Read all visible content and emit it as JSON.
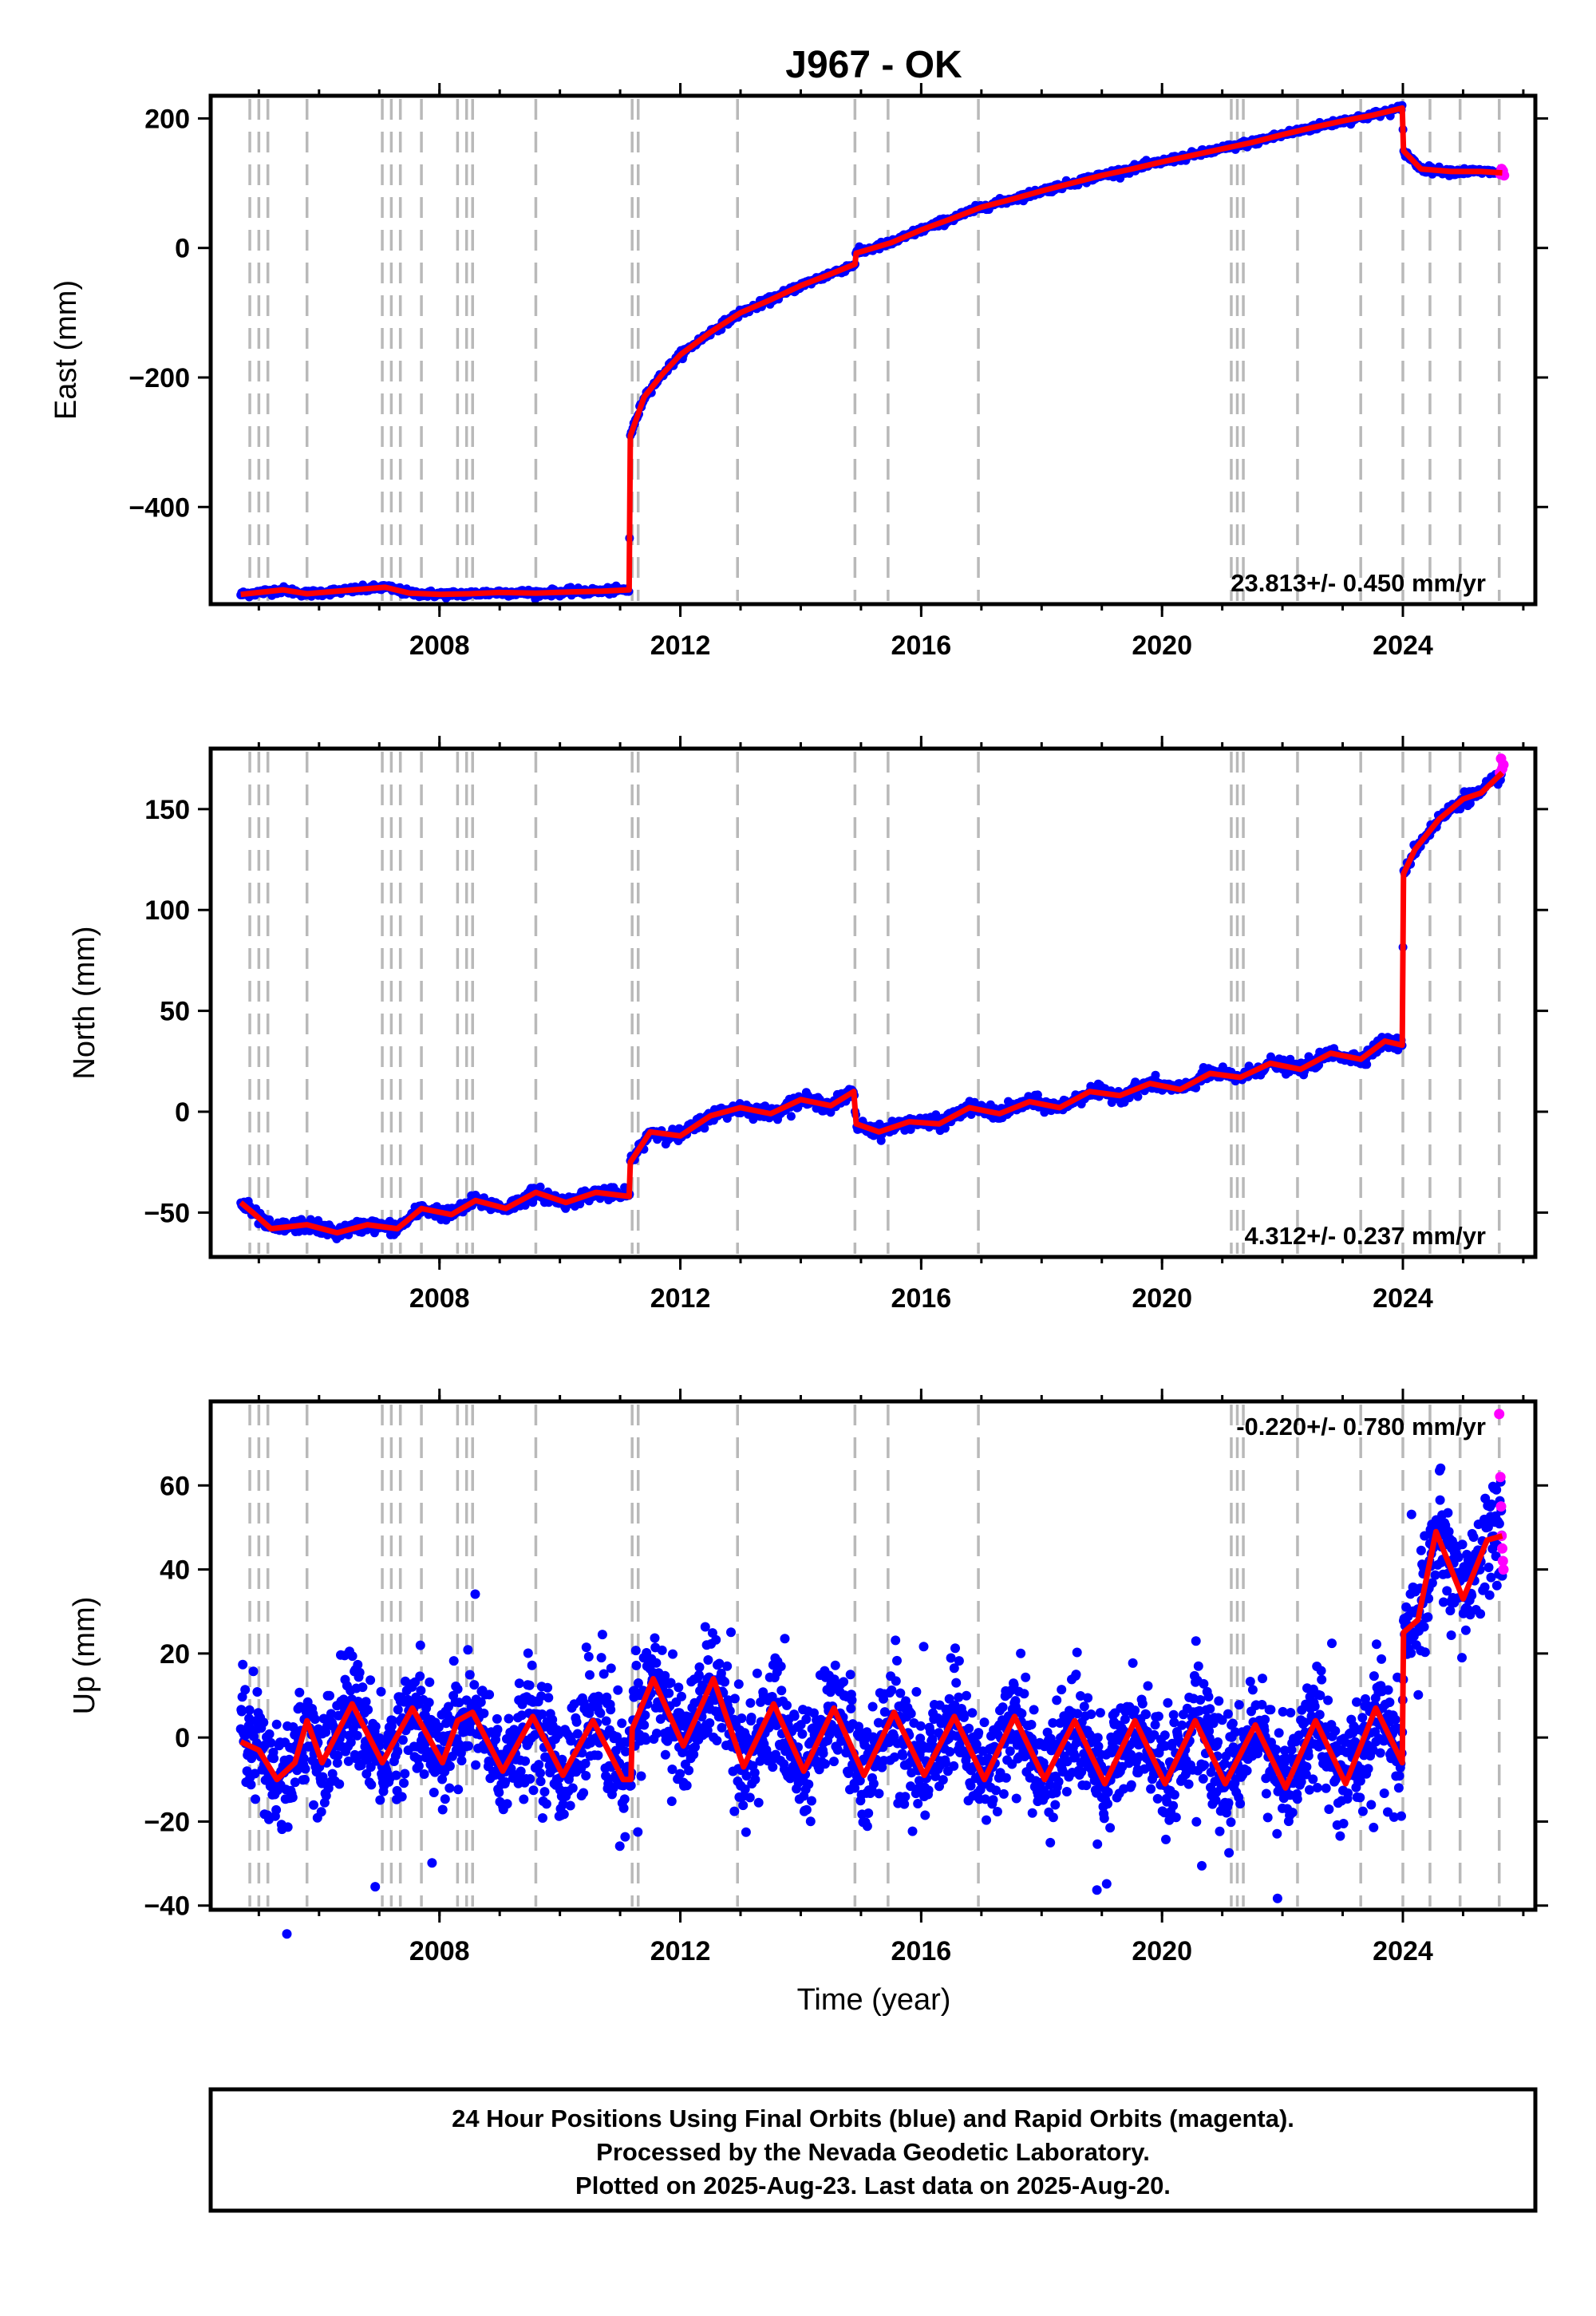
{
  "figure": {
    "title": "J967 - OK",
    "xlabel": "Time (year)",
    "colors": {
      "final": "#0000ff",
      "rapid": "#ff00ff",
      "fit": "#ff0000",
      "events": "#b9b9b9"
    },
    "info_lines": [
      "24 Hour Positions Using Final Orbits (blue) and Rapid Orbits (magenta).",
      "Processed by the Nevada Geodetic Laboratory.",
      "Plotted on 2025-Aug-23. Last data on 2025-Aug-20."
    ]
  },
  "chart_data": [
    {
      "type": "scatter",
      "ylabel": "East (mm)",
      "rate_text": "23.813+/- 0.450 mm/yr",
      "xlim": [
        2004.2,
        2026.2
      ],
      "ylim": [
        -550,
        235
      ],
      "x_ticks": [
        2008,
        2012,
        2016,
        2020,
        2024
      ],
      "y_ticks": [
        -400,
        -200,
        0,
        200
      ],
      "y_tick_labels": [
        "−400",
        "−200",
        "0",
        "200"
      ],
      "event_lines": [
        2004.85,
        2005.0,
        2005.15,
        2005.8,
        2007.05,
        2007.2,
        2007.35,
        2007.7,
        2008.3,
        2008.45,
        2008.55,
        2009.6,
        2011.2,
        2011.3,
        2012.95,
        2014.9,
        2015.45,
        2016.95,
        2021.15,
        2021.25,
        2021.35,
        2022.25,
        2023.3,
        2024.0,
        2024.45,
        2024.95,
        2025.6
      ],
      "fit_series": [
        [
          2004.7,
          -535
        ],
        [
          2005.0,
          -532
        ],
        [
          2005.4,
          -528
        ],
        [
          2005.8,
          -534
        ],
        [
          2006.3,
          -530
        ],
        [
          2006.7,
          -527
        ],
        [
          2007.1,
          -524
        ],
        [
          2007.5,
          -533
        ],
        [
          2008.0,
          -535
        ],
        [
          2008.5,
          -534
        ],
        [
          2009.0,
          -532
        ],
        [
          2009.6,
          -533
        ],
        [
          2010.2,
          -531
        ],
        [
          2010.7,
          -530
        ],
        [
          2011.15,
          -528
        ],
        [
          2011.17,
          -290
        ],
        [
          2011.4,
          -230
        ],
        [
          2011.7,
          -195
        ],
        [
          2012.0,
          -165
        ],
        [
          2012.5,
          -130
        ],
        [
          2013.0,
          -100
        ],
        [
          2013.5,
          -80
        ],
        [
          2014.0,
          -58
        ],
        [
          2014.5,
          -40
        ],
        [
          2014.9,
          -25
        ],
        [
          2014.92,
          -8
        ],
        [
          2015.5,
          8
        ],
        [
          2016.0,
          28
        ],
        [
          2016.5,
          45
        ],
        [
          2017.0,
          63
        ],
        [
          2017.5,
          75
        ],
        [
          2018.0,
          88
        ],
        [
          2018.5,
          100
        ],
        [
          2019.0,
          112
        ],
        [
          2019.5,
          122
        ],
        [
          2020.0,
          133
        ],
        [
          2020.5,
          143
        ],
        [
          2021.0,
          153
        ],
        [
          2021.5,
          163
        ],
        [
          2022.0,
          175
        ],
        [
          2022.5,
          186
        ],
        [
          2023.0,
          196
        ],
        [
          2023.5,
          205
        ],
        [
          2023.99,
          216
        ],
        [
          2024.01,
          150
        ],
        [
          2024.3,
          122
        ],
        [
          2024.8,
          118
        ],
        [
          2025.3,
          118
        ],
        [
          2025.65,
          116
        ]
      ],
      "noise_sd": 2.6,
      "rapid_points": [
        [
          2025.62,
          114
        ],
        [
          2025.64,
          122
        ],
        [
          2025.66,
          119
        ],
        [
          2025.68,
          112
        ]
      ]
    },
    {
      "type": "scatter",
      "ylabel": "North (mm)",
      "rate_text": "4.312+/- 0.237 mm/yr",
      "xlim": [
        2004.2,
        2026.2
      ],
      "ylim": [
        -72,
        180
      ],
      "x_ticks": [
        2008,
        2012,
        2016,
        2020,
        2024
      ],
      "y_ticks": [
        -50,
        0,
        50,
        100,
        150
      ],
      "y_tick_labels": [
        "−50",
        "0",
        "50",
        "100",
        "150"
      ],
      "event_lines": [
        2004.85,
        2005.0,
        2005.15,
        2005.8,
        2007.05,
        2007.2,
        2007.35,
        2007.7,
        2008.3,
        2008.45,
        2008.55,
        2009.6,
        2011.2,
        2011.3,
        2012.95,
        2014.9,
        2015.45,
        2016.95,
        2021.15,
        2021.25,
        2021.35,
        2022.25,
        2023.3,
        2024.0,
        2024.45,
        2024.95,
        2025.6
      ],
      "fit_series": [
        [
          2004.7,
          -45
        ],
        [
          2004.9,
          -50
        ],
        [
          2005.2,
          -58
        ],
        [
          2005.8,
          -56
        ],
        [
          2006.3,
          -60
        ],
        [
          2006.8,
          -56
        ],
        [
          2007.3,
          -58
        ],
        [
          2007.7,
          -48
        ],
        [
          2008.2,
          -51
        ],
        [
          2008.6,
          -44
        ],
        [
          2009.1,
          -48
        ],
        [
          2009.6,
          -40
        ],
        [
          2010.1,
          -45
        ],
        [
          2010.6,
          -40
        ],
        [
          2011.15,
          -42
        ],
        [
          2011.17,
          -25
        ],
        [
          2011.5,
          -10
        ],
        [
          2012.0,
          -12
        ],
        [
          2012.5,
          -2
        ],
        [
          2013.0,
          2
        ],
        [
          2013.5,
          -1
        ],
        [
          2014.0,
          6
        ],
        [
          2014.5,
          3
        ],
        [
          2014.88,
          10
        ],
        [
          2014.92,
          -6
        ],
        [
          2015.3,
          -10
        ],
        [
          2015.8,
          -5
        ],
        [
          2016.3,
          -6
        ],
        [
          2016.8,
          2
        ],
        [
          2017.3,
          -1
        ],
        [
          2017.8,
          5
        ],
        [
          2018.3,
          2
        ],
        [
          2018.8,
          10
        ],
        [
          2019.3,
          8
        ],
        [
          2019.8,
          14
        ],
        [
          2020.3,
          11
        ],
        [
          2020.8,
          19
        ],
        [
          2021.3,
          17
        ],
        [
          2021.8,
          24
        ],
        [
          2022.3,
          21
        ],
        [
          2022.8,
          29
        ],
        [
          2023.3,
          26
        ],
        [
          2023.7,
          35
        ],
        [
          2023.99,
          33
        ],
        [
          2024.01,
          118
        ],
        [
          2024.2,
          130
        ],
        [
          2024.6,
          145
        ],
        [
          2025.0,
          155
        ],
        [
          2025.3,
          158
        ],
        [
          2025.65,
          168
        ]
      ],
      "noise_sd": 1.6,
      "rapid_points": [
        [
          2025.61,
          168
        ],
        [
          2025.63,
          175
        ],
        [
          2025.65,
          170
        ],
        [
          2025.67,
          172
        ]
      ]
    },
    {
      "type": "scatter",
      "ylabel": "Up (mm)",
      "rate_text": "-0.220+/- 0.780 mm/yr",
      "xlim": [
        2004.2,
        2026.2
      ],
      "ylim": [
        -41,
        80
      ],
      "x_ticks": [
        2008,
        2012,
        2016,
        2020,
        2024
      ],
      "y_ticks": [
        -40,
        -20,
        0,
        20,
        40,
        60
      ],
      "y_tick_labels": [
        "−40",
        "−20",
        "0",
        "20",
        "40",
        "60"
      ],
      "event_lines": [
        2004.85,
        2005.0,
        2005.15,
        2005.8,
        2007.05,
        2007.2,
        2007.35,
        2007.7,
        2008.3,
        2008.45,
        2008.55,
        2009.6,
        2011.2,
        2011.3,
        2012.95,
        2014.9,
        2015.45,
        2016.95,
        2021.15,
        2021.25,
        2021.35,
        2022.25,
        2023.3,
        2024.0,
        2024.45,
        2024.95,
        2025.6
      ],
      "fit_series": [
        [
          2004.7,
          -1
        ],
        [
          2005.0,
          -3
        ],
        [
          2005.3,
          -10
        ],
        [
          2005.6,
          -6
        ],
        [
          2005.8,
          4
        ],
        [
          2006.05,
          -6
        ],
        [
          2006.55,
          8
        ],
        [
          2007.05,
          -6
        ],
        [
          2007.55,
          7
        ],
        [
          2008.05,
          -6
        ],
        [
          2008.3,
          4
        ],
        [
          2008.55,
          6
        ],
        [
          2009.05,
          -8
        ],
        [
          2009.55,
          5
        ],
        [
          2010.05,
          -9
        ],
        [
          2010.55,
          4
        ],
        [
          2011.05,
          -10
        ],
        [
          2011.18,
          -10
        ],
        [
          2011.2,
          2
        ],
        [
          2011.55,
          14
        ],
        [
          2012.05,
          -2
        ],
        [
          2012.55,
          14
        ],
        [
          2013.05,
          -7
        ],
        [
          2013.55,
          8
        ],
        [
          2014.05,
          -8
        ],
        [
          2014.55,
          7
        ],
        [
          2015.05,
          -9
        ],
        [
          2015.55,
          6
        ],
        [
          2016.05,
          -9
        ],
        [
          2016.55,
          5
        ],
        [
          2017.05,
          -10
        ],
        [
          2017.55,
          5
        ],
        [
          2018.05,
          -10
        ],
        [
          2018.55,
          4
        ],
        [
          2019.05,
          -11
        ],
        [
          2019.55,
          4
        ],
        [
          2020.05,
          -11
        ],
        [
          2020.55,
          4
        ],
        [
          2021.05,
          -11
        ],
        [
          2021.55,
          3
        ],
        [
          2022.05,
          -12
        ],
        [
          2022.55,
          4
        ],
        [
          2023.05,
          -11
        ],
        [
          2023.55,
          7
        ],
        [
          2023.99,
          -6
        ],
        [
          2024.01,
          25
        ],
        [
          2024.25,
          28
        ],
        [
          2024.55,
          49
        ],
        [
          2025.0,
          33
        ],
        [
          2025.4,
          47
        ],
        [
          2025.65,
          48
        ]
      ],
      "noise_sd": 6.5,
      "rapid_points": [
        [
          2025.6,
          77
        ],
        [
          2025.62,
          62
        ],
        [
          2025.63,
          55
        ],
        [
          2025.64,
          48
        ],
        [
          2025.65,
          45
        ],
        [
          2025.66,
          42
        ],
        [
          2025.67,
          40
        ]
      ]
    }
  ]
}
